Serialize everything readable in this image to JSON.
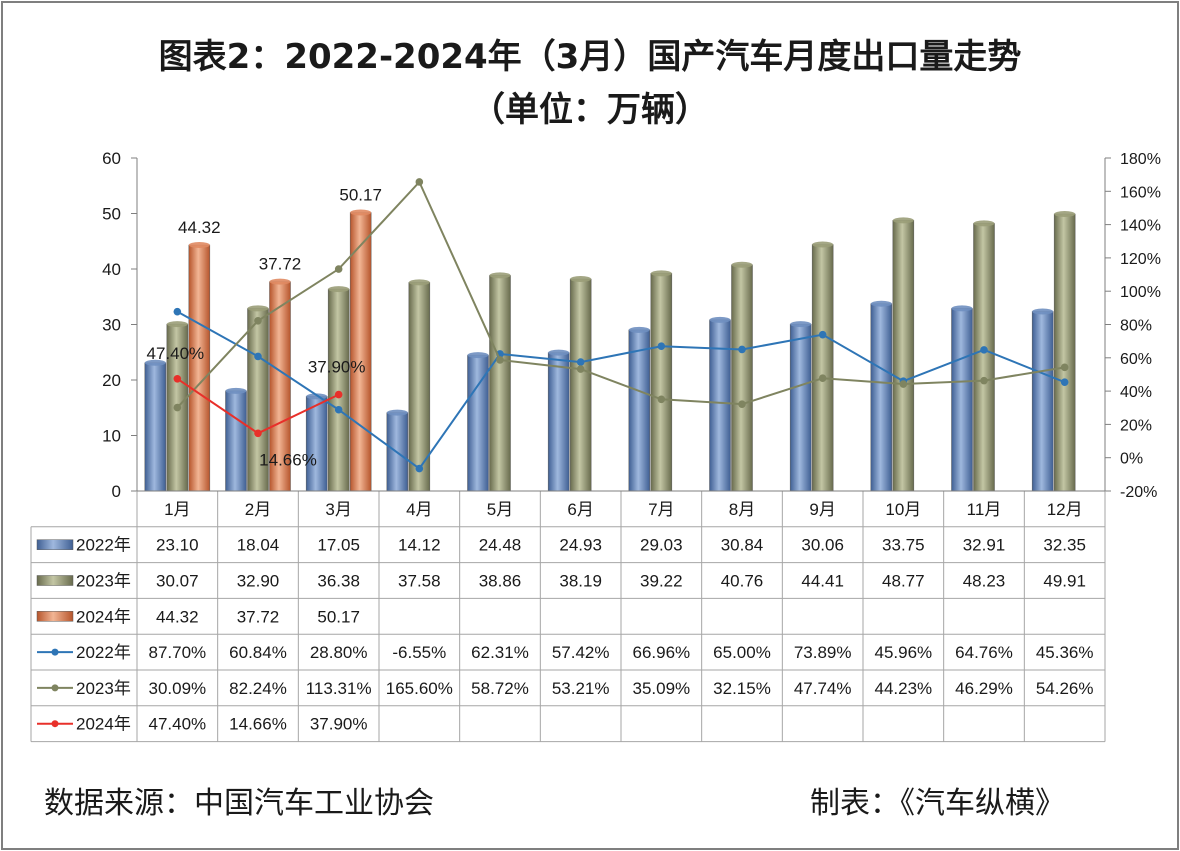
{
  "title_line1": "图表2：2022-2024年（3月）国产汽车月度出口量走势",
  "title_line2": "（单位：万辆）",
  "footer": {
    "source": "数据来源：中国汽车工业协会",
    "maker": "制表：《汽车纵横》"
  },
  "chart_data": {
    "type": "bar",
    "categories": [
      "1月",
      "2月",
      "3月",
      "4月",
      "5月",
      "6月",
      "7月",
      "8月",
      "9月",
      "10月",
      "11月",
      "12月"
    ],
    "y_left": {
      "min": 0,
      "max": 60,
      "ticks": [
        "0",
        "10",
        "20",
        "30",
        "40",
        "50",
        "60"
      ]
    },
    "y_right": {
      "min": -20,
      "max": 180,
      "ticks": [
        "-20%",
        "0%",
        "20%",
        "40%",
        "60%",
        "80%",
        "100%",
        "120%",
        "140%",
        "160%",
        "180%"
      ]
    },
    "bar_series": [
      {
        "name": "2022年",
        "color": "#6f8fc0",
        "values": [
          23.1,
          18.04,
          17.05,
          14.12,
          24.48,
          24.93,
          29.03,
          30.84,
          30.06,
          33.75,
          32.91,
          32.35
        ],
        "labels": [
          "23.10",
          "18.04",
          "17.05",
          "14.12",
          "24.48",
          "24.93",
          "29.03",
          "30.84",
          "30.06",
          "33.75",
          "32.91",
          "32.35"
        ]
      },
      {
        "name": "2023年",
        "color": "#9a9d78",
        "values": [
          30.07,
          32.9,
          36.38,
          37.58,
          38.86,
          38.19,
          39.22,
          40.76,
          44.41,
          48.77,
          48.23,
          49.91
        ],
        "labels": [
          "30.07",
          "32.90",
          "36.38",
          "37.58",
          "38.86",
          "38.19",
          "39.22",
          "40.76",
          "44.41",
          "48.77",
          "48.23",
          "49.91"
        ]
      },
      {
        "name": "2024年",
        "color": "#e08a62",
        "values": [
          44.32,
          37.72,
          50.17,
          null,
          null,
          null,
          null,
          null,
          null,
          null,
          null,
          null
        ],
        "labels": [
          "44.32",
          "37.72",
          "50.17",
          "",
          "",
          "",
          "",
          "",
          "",
          "",
          "",
          ""
        ]
      }
    ],
    "line_series": [
      {
        "name": "2022年",
        "color": "#2e75b6",
        "values": [
          87.7,
          60.84,
          28.8,
          -6.55,
          62.31,
          57.42,
          66.96,
          65.0,
          73.89,
          45.96,
          64.76,
          45.36
        ],
        "labels": [
          "87.70%",
          "60.84%",
          "28.80%",
          "-6.55%",
          "62.31%",
          "57.42%",
          "66.96%",
          "65.00%",
          "73.89%",
          "45.96%",
          "64.76%",
          "45.36%"
        ]
      },
      {
        "name": "2023年",
        "color": "#7f8460",
        "values": [
          30.09,
          82.24,
          113.31,
          165.6,
          58.72,
          53.21,
          35.09,
          32.15,
          47.74,
          44.23,
          46.29,
          54.26
        ],
        "labels": [
          "30.09%",
          "82.24%",
          "113.31%",
          "165.60%",
          "58.72%",
          "53.21%",
          "35.09%",
          "32.15%",
          "47.74%",
          "44.23%",
          "46.29%",
          "54.26%"
        ]
      },
      {
        "name": "2024年",
        "color": "#e8302a",
        "values": [
          47.4,
          14.66,
          37.9,
          null,
          null,
          null,
          null,
          null,
          null,
          null,
          null,
          null
        ],
        "labels": [
          "47.40%",
          "14.66%",
          "37.90%",
          "",
          "",
          "",
          "",
          "",
          "",
          "",
          "",
          ""
        ]
      }
    ],
    "bar_data_labels": [
      "44.32",
      "37.72",
      "50.17"
    ],
    "line_data_labels": [
      "47.40%",
      "14.66%",
      "37.90%"
    ],
    "legend": "data-table"
  }
}
